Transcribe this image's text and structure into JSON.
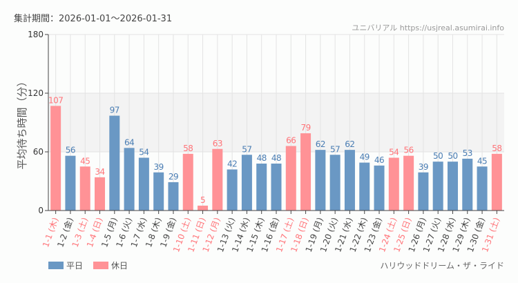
{
  "period_label": "集計期間：2026-01-01〜2026-01-31",
  "site_credit": "ユニバリアル  https://usjreal.asumirai.info",
  "attraction_name": "ハリウッドドリーム・ザ・ライド",
  "colors": {
    "weekday": "#6a98c4",
    "holiday": "#ff9296",
    "weekday_label": "#4a7db3",
    "holiday_label": "#ff7378",
    "band": "#f3f3f3"
  },
  "chart_data": {
    "type": "bar",
    "ylabel": "平均待ち時間（分）",
    "ylim": [
      0,
      180
    ],
    "yticks": [
      0,
      60,
      120,
      180
    ],
    "shaded_band": [
      60,
      120
    ],
    "grid": true,
    "legend_placement": "bottom-left",
    "legend": [
      {
        "name": "平日",
        "key": "weekday"
      },
      {
        "name": "休日",
        "key": "holiday"
      }
    ],
    "categories": [
      "1-1 (木)",
      "1-2 (金)",
      "1-3 (土)",
      "1-4 (日)",
      "1-5 (月)",
      "1-6 (火)",
      "1-7 (水)",
      "1-8 (木)",
      "1-9 (金)",
      "1-10 (土)",
      "1-11 (日)",
      "1-12 (月)",
      "1-13 (火)",
      "1-14 (水)",
      "1-15 (木)",
      "1-16 (金)",
      "1-17 (土)",
      "1-18 (日)",
      "1-19 (月)",
      "1-20 (火)",
      "1-21 (水)",
      "1-22 (木)",
      "1-23 (金)",
      "1-24 (土)",
      "1-25 (日)",
      "1-26 (月)",
      "1-27 (火)",
      "1-28 (水)",
      "1-29 (木)",
      "1-30 (金)",
      "1-31 (土)"
    ],
    "values": [
      107,
      56,
      45,
      34,
      97,
      64,
      54,
      39,
      29,
      58,
      5,
      63,
      42,
      57,
      48,
      48,
      66,
      79,
      62,
      57,
      62,
      49,
      46,
      54,
      56,
      39,
      50,
      50,
      53,
      45,
      58
    ],
    "day_type": [
      "holiday",
      "weekday",
      "holiday",
      "holiday",
      "weekday",
      "weekday",
      "weekday",
      "weekday",
      "weekday",
      "holiday",
      "holiday",
      "holiday",
      "weekday",
      "weekday",
      "weekday",
      "weekday",
      "holiday",
      "holiday",
      "weekday",
      "weekday",
      "weekday",
      "weekday",
      "weekday",
      "holiday",
      "holiday",
      "weekday",
      "weekday",
      "weekday",
      "weekday",
      "weekday",
      "holiday"
    ]
  }
}
